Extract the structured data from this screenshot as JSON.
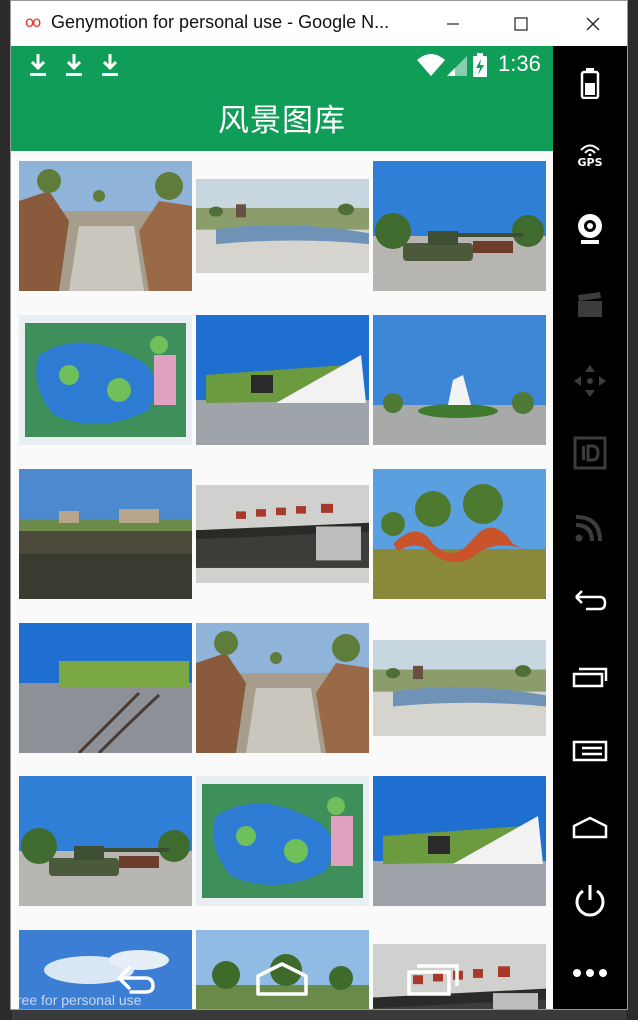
{
  "window": {
    "title": "Genymotion for personal use - Google N...",
    "logo": "oo",
    "minimize_icon": "minimize-icon",
    "maximize_icon": "maximize-icon",
    "close_icon": "close-icon"
  },
  "statusbar": {
    "time": "1:36",
    "download_icons": 3,
    "wifi_icon": "wifi-icon",
    "signal_icon": "signal-icon",
    "battery_icon": "battery-charging-icon"
  },
  "app": {
    "title": "风景图库",
    "color": "#0f9d58"
  },
  "gallery": {
    "columns": 3,
    "visible_rows": 6,
    "images": [
      {
        "subject": "stone-steps-rockery"
      },
      {
        "subject": "park-panorama"
      },
      {
        "subject": "tank-display"
      },
      {
        "subject": "park-map-board"
      },
      {
        "subject": "museum-building"
      },
      {
        "subject": "white-statue-plaza"
      },
      {
        "subject": "lake-reflection"
      },
      {
        "subject": "museum-gate"
      },
      {
        "subject": "red-sculpture-lawn"
      },
      {
        "subject": "railway-plaza"
      },
      {
        "subject": "stone-steps-rockery"
      },
      {
        "subject": "park-panorama"
      },
      {
        "subject": "tank-display"
      },
      {
        "subject": "park-map-board"
      },
      {
        "subject": "museum-building"
      },
      {
        "subject": "blue-sky-cloud"
      },
      {
        "subject": "village-trees"
      },
      {
        "subject": "museum-gate"
      }
    ]
  },
  "navbar": {
    "back_icon": "back-icon",
    "home_icon": "home-icon",
    "recents_icon": "recents-icon"
  },
  "watermark": "free for personal use",
  "sidebar": {
    "buttons": [
      "battery-icon",
      "gps-icon",
      "camera-icon",
      "clapper-icon",
      "dpad-icon",
      "id-icon",
      "cast-icon",
      "back-icon",
      "recents-icon",
      "menu-icon",
      "home-icon",
      "power-icon",
      "more-icon"
    ],
    "gps_label": "GPS"
  }
}
